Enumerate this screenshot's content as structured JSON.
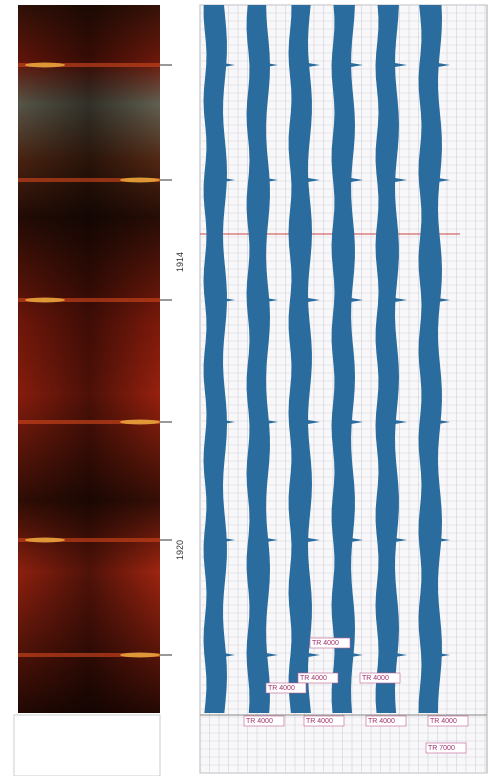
{
  "depth_labels": [
    "1914",
    "1920"
  ],
  "track_labels": [
    "TR 4000",
    "TR 4000",
    "TR 4000",
    "TR 4000",
    "TR 4000",
    "TR 4000",
    "TR 4000",
    "TR 4000",
    "TR 7000"
  ]
}
